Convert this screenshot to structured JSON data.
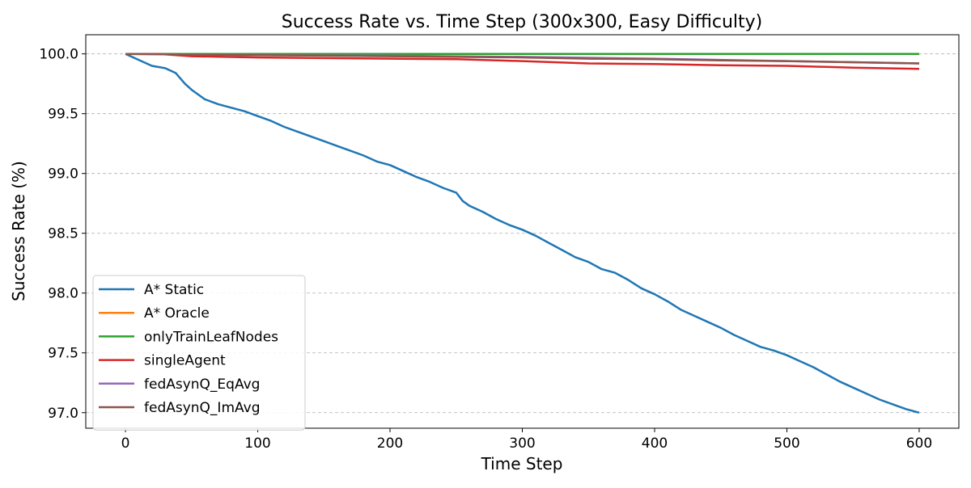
{
  "chart_data": {
    "type": "line",
    "title": "Success Rate vs. Time Step (300x300, Easy Difficulty)",
    "xlabel": "Time Step",
    "ylabel": "Success Rate (%)",
    "xlim": [
      -30,
      630
    ],
    "ylim": [
      96.87,
      100.16
    ],
    "xticks": [
      0,
      100,
      200,
      300,
      400,
      500,
      600
    ],
    "yticks": [
      97.0,
      97.5,
      98.0,
      98.5,
      99.0,
      99.5,
      100.0
    ],
    "xtick_labels": [
      "0",
      "100",
      "200",
      "300",
      "400",
      "500",
      "600"
    ],
    "ytick_labels": [
      "97.0",
      "97.5",
      "98.0",
      "98.5",
      "99.0",
      "99.5",
      "100.0"
    ],
    "grid": "y-dashed",
    "legend_position": "lower-left",
    "series": [
      {
        "name": "A* Static",
        "color": "#1f77b4",
        "x": [
          0,
          10,
          20,
          30,
          38,
          45,
          50,
          60,
          70,
          80,
          90,
          100,
          110,
          120,
          130,
          140,
          150,
          160,
          170,
          180,
          190,
          200,
          210,
          220,
          230,
          240,
          250,
          255,
          260,
          270,
          280,
          290,
          300,
          310,
          320,
          330,
          340,
          350,
          360,
          370,
          380,
          390,
          400,
          410,
          420,
          430,
          440,
          450,
          460,
          470,
          480,
          490,
          500,
          510,
          520,
          530,
          540,
          550,
          560,
          570,
          580,
          590,
          600
        ],
        "y": [
          100.0,
          99.95,
          99.9,
          99.88,
          99.84,
          99.75,
          99.7,
          99.62,
          99.58,
          99.55,
          99.52,
          99.48,
          99.44,
          99.39,
          99.35,
          99.31,
          99.27,
          99.23,
          99.19,
          99.15,
          99.1,
          99.07,
          99.02,
          98.97,
          98.93,
          98.88,
          98.84,
          98.77,
          98.73,
          98.68,
          98.62,
          98.57,
          98.53,
          98.48,
          98.42,
          98.36,
          98.3,
          98.26,
          98.2,
          98.17,
          98.11,
          98.04,
          97.99,
          97.93,
          97.86,
          97.81,
          97.76,
          97.71,
          97.65,
          97.6,
          97.55,
          97.52,
          97.48,
          97.43,
          97.38,
          97.32,
          97.26,
          97.21,
          97.16,
          97.11,
          97.07,
          97.03,
          97.0
        ]
      },
      {
        "name": "A* Oracle",
        "color": "#ff7f0e",
        "x": [
          0,
          100,
          200,
          300,
          400,
          500,
          600
        ],
        "y": [
          100.0,
          100.0,
          100.0,
          100.0,
          100.0,
          100.0,
          100.0
        ]
      },
      {
        "name": "onlyTrainLeafNodes",
        "color": "#2ca02c",
        "x": [
          0,
          100,
          200,
          300,
          400,
          500,
          600
        ],
        "y": [
          100.0,
          100.0,
          100.0,
          100.0,
          100.0,
          100.0,
          100.0
        ]
      },
      {
        "name": "singleAgent",
        "color": "#d62728",
        "x": [
          0,
          25,
          50,
          75,
          100,
          150,
          200,
          250,
          300,
          350,
          400,
          450,
          500,
          550,
          600
        ],
        "y": [
          100.0,
          100.0,
          99.98,
          99.975,
          99.97,
          99.965,
          99.96,
          99.955,
          99.94,
          99.92,
          99.915,
          99.905,
          99.9,
          99.885,
          99.875
        ]
      },
      {
        "name": "fedAsynQ_EqAvg",
        "color": "#9467bd",
        "x": [
          0,
          100,
          200,
          300,
          400,
          500,
          600
        ],
        "y": [
          100.0,
          99.99,
          99.985,
          99.975,
          99.96,
          99.94,
          99.92
        ]
      },
      {
        "name": "fedAsynQ_ImAvg",
        "color": "#8c564b",
        "x": [
          0,
          50,
          100,
          150,
          200,
          250,
          300,
          350,
          400,
          450,
          500,
          550,
          600
        ],
        "y": [
          100.0,
          99.995,
          99.99,
          99.985,
          99.98,
          99.975,
          99.97,
          99.96,
          99.955,
          99.945,
          99.94,
          99.93,
          99.92
        ]
      }
    ]
  }
}
